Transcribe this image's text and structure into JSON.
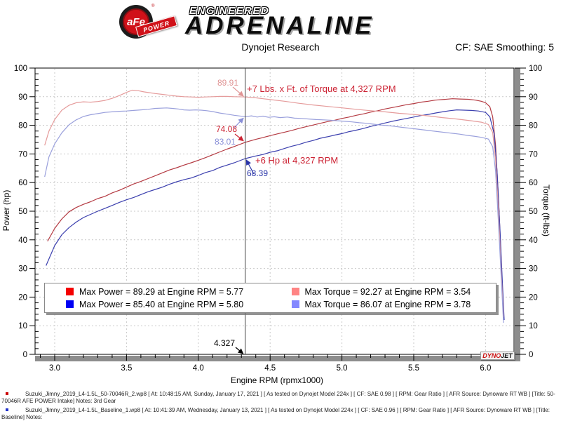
{
  "header": {
    "logo_afe": "aFe",
    "logo_power": "POWER",
    "logo_reg": "®",
    "engineered": "ENGINEERED",
    "adrenaline": "ADRENALINE",
    "title": "Dynojet Research",
    "smoothing": "CF: SAE Smoothing: 5"
  },
  "chart_data": {
    "type": "line",
    "title": "Dynojet Research",
    "xlabel": "Engine RPM (rpmx1000)",
    "ylabel_left": "Power (hp)",
    "ylabel_right": "Torque (ft-lbs)",
    "xlim": [
      2.86,
      6.2
    ],
    "ylim": [
      0,
      100
    ],
    "x_tick_labels": [
      "3.0",
      "3.5",
      "4.0",
      "4.5",
      "5.0",
      "5.5",
      "6.0"
    ],
    "y_ticks": [
      0,
      10,
      20,
      30,
      40,
      50,
      60,
      70,
      80,
      90,
      100
    ],
    "grid": "dashed",
    "legend_position": "bottom-inside",
    "cursor": {
      "rpm": 4.327,
      "label": "4.327"
    },
    "series": [
      {
        "name": "power-afe",
        "color": "#b43a42",
        "legend_color": "#f40000",
        "label": "Max Power = 89.29 at Engine RPM = 5.77",
        "max": {
          "value": 89.29,
          "rpm": 5.77
        },
        "value_at_cursor": 74.08,
        "points": [
          [
            2.95,
            39.5
          ],
          [
            3.0,
            44.0
          ],
          [
            3.05,
            47.3
          ],
          [
            3.1,
            49.8
          ],
          [
            3.15,
            51.3
          ],
          [
            3.2,
            52.4
          ],
          [
            3.25,
            53.3
          ],
          [
            3.3,
            54.4
          ],
          [
            3.35,
            55.2
          ],
          [
            3.4,
            56.4
          ],
          [
            3.45,
            57.3
          ],
          [
            3.5,
            58.4
          ],
          [
            3.55,
            59.5
          ],
          [
            3.6,
            60.4
          ],
          [
            3.65,
            61.4
          ],
          [
            3.7,
            62.4
          ],
          [
            3.75,
            63.4
          ],
          [
            3.8,
            64.4
          ],
          [
            3.85,
            65.2
          ],
          [
            3.9,
            66.1
          ],
          [
            3.95,
            66.9
          ],
          [
            4.0,
            67.8
          ],
          [
            4.05,
            68.7
          ],
          [
            4.1,
            69.7
          ],
          [
            4.15,
            70.7
          ],
          [
            4.2,
            71.7
          ],
          [
            4.25,
            72.6
          ],
          [
            4.327,
            74.08
          ],
          [
            4.4,
            75.1
          ],
          [
            4.45,
            75.7
          ],
          [
            4.5,
            76.4
          ],
          [
            4.55,
            77.0
          ],
          [
            4.6,
            77.6
          ],
          [
            4.65,
            78.2
          ],
          [
            4.7,
            78.9
          ],
          [
            4.75,
            79.5
          ],
          [
            4.8,
            80.1
          ],
          [
            4.85,
            80.7
          ],
          [
            4.9,
            81.3
          ],
          [
            4.95,
            81.8
          ],
          [
            5.0,
            82.4
          ],
          [
            5.05,
            82.9
          ],
          [
            5.1,
            83.5
          ],
          [
            5.15,
            84.0
          ],
          [
            5.2,
            84.6
          ],
          [
            5.25,
            85.1
          ],
          [
            5.3,
            85.7
          ],
          [
            5.35,
            86.2
          ],
          [
            5.4,
            86.7
          ],
          [
            5.45,
            87.2
          ],
          [
            5.5,
            87.6
          ],
          [
            5.55,
            88.1
          ],
          [
            5.6,
            88.4
          ],
          [
            5.65,
            88.8
          ],
          [
            5.7,
            89.0
          ],
          [
            5.77,
            89.29
          ],
          [
            5.82,
            89.2
          ],
          [
            5.88,
            89.1
          ],
          [
            5.93,
            88.8
          ],
          [
            5.97,
            88.4
          ],
          [
            6.0,
            87.9
          ],
          [
            6.03,
            86.5
          ],
          [
            6.05,
            83.0
          ],
          [
            6.07,
            73.0
          ],
          [
            6.09,
            55.0
          ],
          [
            6.11,
            32.0
          ],
          [
            6.125,
            14.0
          ]
        ]
      },
      {
        "name": "power-baseline",
        "color": "#3b3fae",
        "legend_color": "#0000f4",
        "label": "Max Power = 85.40 at Engine RPM = 5.80",
        "max": {
          "value": 85.4,
          "rpm": 5.8
        },
        "value_at_cursor": 68.39,
        "points": [
          [
            2.94,
            31.0
          ],
          [
            3.0,
            38.0
          ],
          [
            3.05,
            41.8
          ],
          [
            3.1,
            44.3
          ],
          [
            3.15,
            46.2
          ],
          [
            3.2,
            47.8
          ],
          [
            3.25,
            48.9
          ],
          [
            3.3,
            50.0
          ],
          [
            3.35,
            51.0
          ],
          [
            3.4,
            52.0
          ],
          [
            3.45,
            53.1
          ],
          [
            3.5,
            54.0
          ],
          [
            3.55,
            54.8
          ],
          [
            3.6,
            55.8
          ],
          [
            3.65,
            56.8
          ],
          [
            3.7,
            57.6
          ],
          [
            3.75,
            58.4
          ],
          [
            3.8,
            59.4
          ],
          [
            3.85,
            60.3
          ],
          [
            3.9,
            61.0
          ],
          [
            3.95,
            61.6
          ],
          [
            4.0,
            62.5
          ],
          [
            4.05,
            63.5
          ],
          [
            4.1,
            64.2
          ],
          [
            4.15,
            65.3
          ],
          [
            4.2,
            66.1
          ],
          [
            4.25,
            66.9
          ],
          [
            4.327,
            68.39
          ],
          [
            4.4,
            69.3
          ],
          [
            4.45,
            69.8
          ],
          [
            4.5,
            70.6
          ],
          [
            4.55,
            71.1
          ],
          [
            4.6,
            71.9
          ],
          [
            4.65,
            72.7
          ],
          [
            4.7,
            73.3
          ],
          [
            4.75,
            74.1
          ],
          [
            4.8,
            74.7
          ],
          [
            4.85,
            75.5
          ],
          [
            4.9,
            76.0
          ],
          [
            4.95,
            76.6
          ],
          [
            5.0,
            77.1
          ],
          [
            5.05,
            77.8
          ],
          [
            5.1,
            78.3
          ],
          [
            5.15,
            78.9
          ],
          [
            5.2,
            79.6
          ],
          [
            5.25,
            80.2
          ],
          [
            5.3,
            80.8
          ],
          [
            5.35,
            81.4
          ],
          [
            5.4,
            81.9
          ],
          [
            5.45,
            82.4
          ],
          [
            5.5,
            82.9
          ],
          [
            5.55,
            83.4
          ],
          [
            5.6,
            83.8
          ],
          [
            5.65,
            84.3
          ],
          [
            5.7,
            84.7
          ],
          [
            5.75,
            85.1
          ],
          [
            5.8,
            85.4
          ],
          [
            5.85,
            85.3
          ],
          [
            5.9,
            85.2
          ],
          [
            5.95,
            85.0
          ],
          [
            6.0,
            84.5
          ],
          [
            6.03,
            83.0
          ],
          [
            6.06,
            77.0
          ],
          [
            6.08,
            64.0
          ],
          [
            6.1,
            44.0
          ],
          [
            6.12,
            22.0
          ],
          [
            6.13,
            12.0
          ]
        ]
      },
      {
        "name": "torque-afe",
        "color": "#e59b9b",
        "legend_color": "#ff8484",
        "label": "Max Torque = 92.27 at Engine RPM = 3.54",
        "max": {
          "value": 92.27,
          "rpm": 3.54
        },
        "value_at_cursor": 89.91,
        "points": [
          [
            2.93,
            73.0
          ],
          [
            2.96,
            78.0
          ],
          [
            3.0,
            82.0
          ],
          [
            3.05,
            85.3
          ],
          [
            3.1,
            87.0
          ],
          [
            3.15,
            87.9
          ],
          [
            3.2,
            88.2
          ],
          [
            3.25,
            88.1
          ],
          [
            3.3,
            88.3
          ],
          [
            3.35,
            88.7
          ],
          [
            3.4,
            89.4
          ],
          [
            3.45,
            90.4
          ],
          [
            3.5,
            91.5
          ],
          [
            3.54,
            92.27
          ],
          [
            3.58,
            92.1
          ],
          [
            3.62,
            91.7
          ],
          [
            3.66,
            91.4
          ],
          [
            3.7,
            91.1
          ],
          [
            3.75,
            90.8
          ],
          [
            3.8,
            90.5
          ],
          [
            3.85,
            90.2
          ],
          [
            3.9,
            90.0
          ],
          [
            3.95,
            89.9
          ],
          [
            4.0,
            89.8
          ],
          [
            4.05,
            89.9
          ],
          [
            4.1,
            90.0
          ],
          [
            4.15,
            90.1
          ],
          [
            4.2,
            90.1
          ],
          [
            4.25,
            90.0
          ],
          [
            4.327,
            89.91
          ],
          [
            4.4,
            89.6
          ],
          [
            4.45,
            89.3
          ],
          [
            4.5,
            89.0
          ],
          [
            4.6,
            88.4
          ],
          [
            4.7,
            87.7
          ],
          [
            4.8,
            87.1
          ],
          [
            4.9,
            86.6
          ],
          [
            5.0,
            86.1
          ],
          [
            5.1,
            85.6
          ],
          [
            5.2,
            85.1
          ],
          [
            5.3,
            84.7
          ],
          [
            5.4,
            84.2
          ],
          [
            5.5,
            83.8
          ],
          [
            5.6,
            83.3
          ],
          [
            5.7,
            82.7
          ],
          [
            5.8,
            82.2
          ],
          [
            5.9,
            81.6
          ],
          [
            5.97,
            81.1
          ],
          [
            6.02,
            80.3
          ],
          [
            6.05,
            77.5
          ],
          [
            6.07,
            68.0
          ],
          [
            6.09,
            50.0
          ],
          [
            6.11,
            28.0
          ],
          [
            6.125,
            13.0
          ]
        ]
      },
      {
        "name": "torque-baseline",
        "color": "#9aa0dc",
        "legend_color": "#8488ff",
        "label": "Max Torque = 86.07 at Engine RPM = 3.78",
        "max": {
          "value": 86.07,
          "rpm": 3.78
        },
        "value_at_cursor": 83.01,
        "points": [
          [
            2.93,
            62.0
          ],
          [
            2.96,
            69.0
          ],
          [
            3.0,
            73.5
          ],
          [
            3.05,
            77.4
          ],
          [
            3.1,
            80.2
          ],
          [
            3.15,
            81.9
          ],
          [
            3.2,
            83.1
          ],
          [
            3.25,
            83.7
          ],
          [
            3.3,
            84.1
          ],
          [
            3.35,
            84.5
          ],
          [
            3.4,
            84.7
          ],
          [
            3.45,
            84.9
          ],
          [
            3.5,
            85.0
          ],
          [
            3.55,
            85.2
          ],
          [
            3.6,
            85.4
          ],
          [
            3.65,
            85.6
          ],
          [
            3.7,
            85.9
          ],
          [
            3.78,
            86.07
          ],
          [
            3.82,
            85.9
          ],
          [
            3.86,
            85.7
          ],
          [
            3.9,
            85.4
          ],
          [
            3.94,
            85.3
          ],
          [
            3.98,
            85.4
          ],
          [
            4.02,
            85.3
          ],
          [
            4.06,
            85.1
          ],
          [
            4.1,
            84.8
          ],
          [
            4.15,
            84.3
          ],
          [
            4.2,
            83.9
          ],
          [
            4.25,
            83.5
          ],
          [
            4.327,
            83.01
          ],
          [
            4.37,
            83.3
          ],
          [
            4.41,
            82.9
          ],
          [
            4.45,
            83.2
          ],
          [
            4.49,
            82.8
          ],
          [
            4.53,
            83.0
          ],
          [
            4.57,
            82.7
          ],
          [
            4.62,
            82.9
          ],
          [
            4.67,
            82.5
          ],
          [
            4.72,
            82.4
          ],
          [
            4.77,
            82.2
          ],
          [
            4.82,
            82.0
          ],
          [
            4.87,
            81.9
          ],
          [
            4.92,
            81.8
          ],
          [
            4.97,
            81.6
          ],
          [
            5.02,
            81.4
          ],
          [
            5.07,
            81.2
          ],
          [
            5.12,
            80.9
          ],
          [
            5.17,
            80.7
          ],
          [
            5.22,
            80.4
          ],
          [
            5.27,
            80.1
          ],
          [
            5.32,
            79.9
          ],
          [
            5.37,
            79.6
          ],
          [
            5.42,
            79.3
          ],
          [
            5.47,
            79.0
          ],
          [
            5.52,
            78.7
          ],
          [
            5.57,
            78.4
          ],
          [
            5.62,
            78.1
          ],
          [
            5.67,
            77.8
          ],
          [
            5.72,
            77.5
          ],
          [
            5.77,
            77.2
          ],
          [
            5.82,
            76.9
          ],
          [
            5.87,
            76.5
          ],
          [
            5.92,
            76.2
          ],
          [
            5.97,
            75.8
          ],
          [
            6.02,
            75.2
          ],
          [
            6.05,
            72.5
          ],
          [
            6.07,
            64.0
          ],
          [
            6.09,
            46.0
          ],
          [
            6.11,
            26.0
          ],
          [
            6.125,
            11.0
          ]
        ]
      }
    ],
    "annotations": [
      "89.91",
      "+7 Lbs. x Ft. of Torque at 4,327 RPM",
      "74.08",
      "83.01",
      "+6 Hp at 4,327 RPM",
      "68.39",
      "4.327"
    ]
  },
  "annotations": {
    "cursor_torque_afe": "89.91",
    "torque_gain": "+7 Lbs. x Ft. of Torque at 4,327 RPM",
    "cursor_power_afe": "74.08",
    "cursor_torque_baseline": "83.01",
    "hp_gain": "+6 Hp at 4,327 RPM",
    "cursor_power_baseline": "68.39",
    "cursor_rpm": "4.327"
  },
  "dynojet_logo": {
    "dyno": "DYNO",
    "jet": "JET"
  },
  "footer": {
    "entries": [
      {
        "bullet_color": "#cc0000",
        "text": "Suzuki_Jimny_2019_L4-1.5L_50-70046R_2.wp8 [ At: 10:48:15 AM, Sunday, January 17, 2021 ] [ As tested on Dynojet Model 224x ] [ CF: SAE 0.98 ] [ RPM: Gear Ratio ] [ AFR Source: Dynoware RT WB ] [Title: 50-70046R AFE POWER Intake]  Notes: 3rd Gear"
      },
      {
        "bullet_color": "#2233cc",
        "text": "Suzuki_Jimny_2019_L4-1.5L_Baseline_1.wp8 [ At: 10:41:39 AM, Wednesday, January 13, 2021 ] [ As tested on Dynojet Model 224x ] [ CF: SAE 0.96 ] [ RPM: Gear Ratio ] [ AFR Source: Dynoware RT WB ] [Title: Baseline]  Notes:"
      }
    ]
  }
}
